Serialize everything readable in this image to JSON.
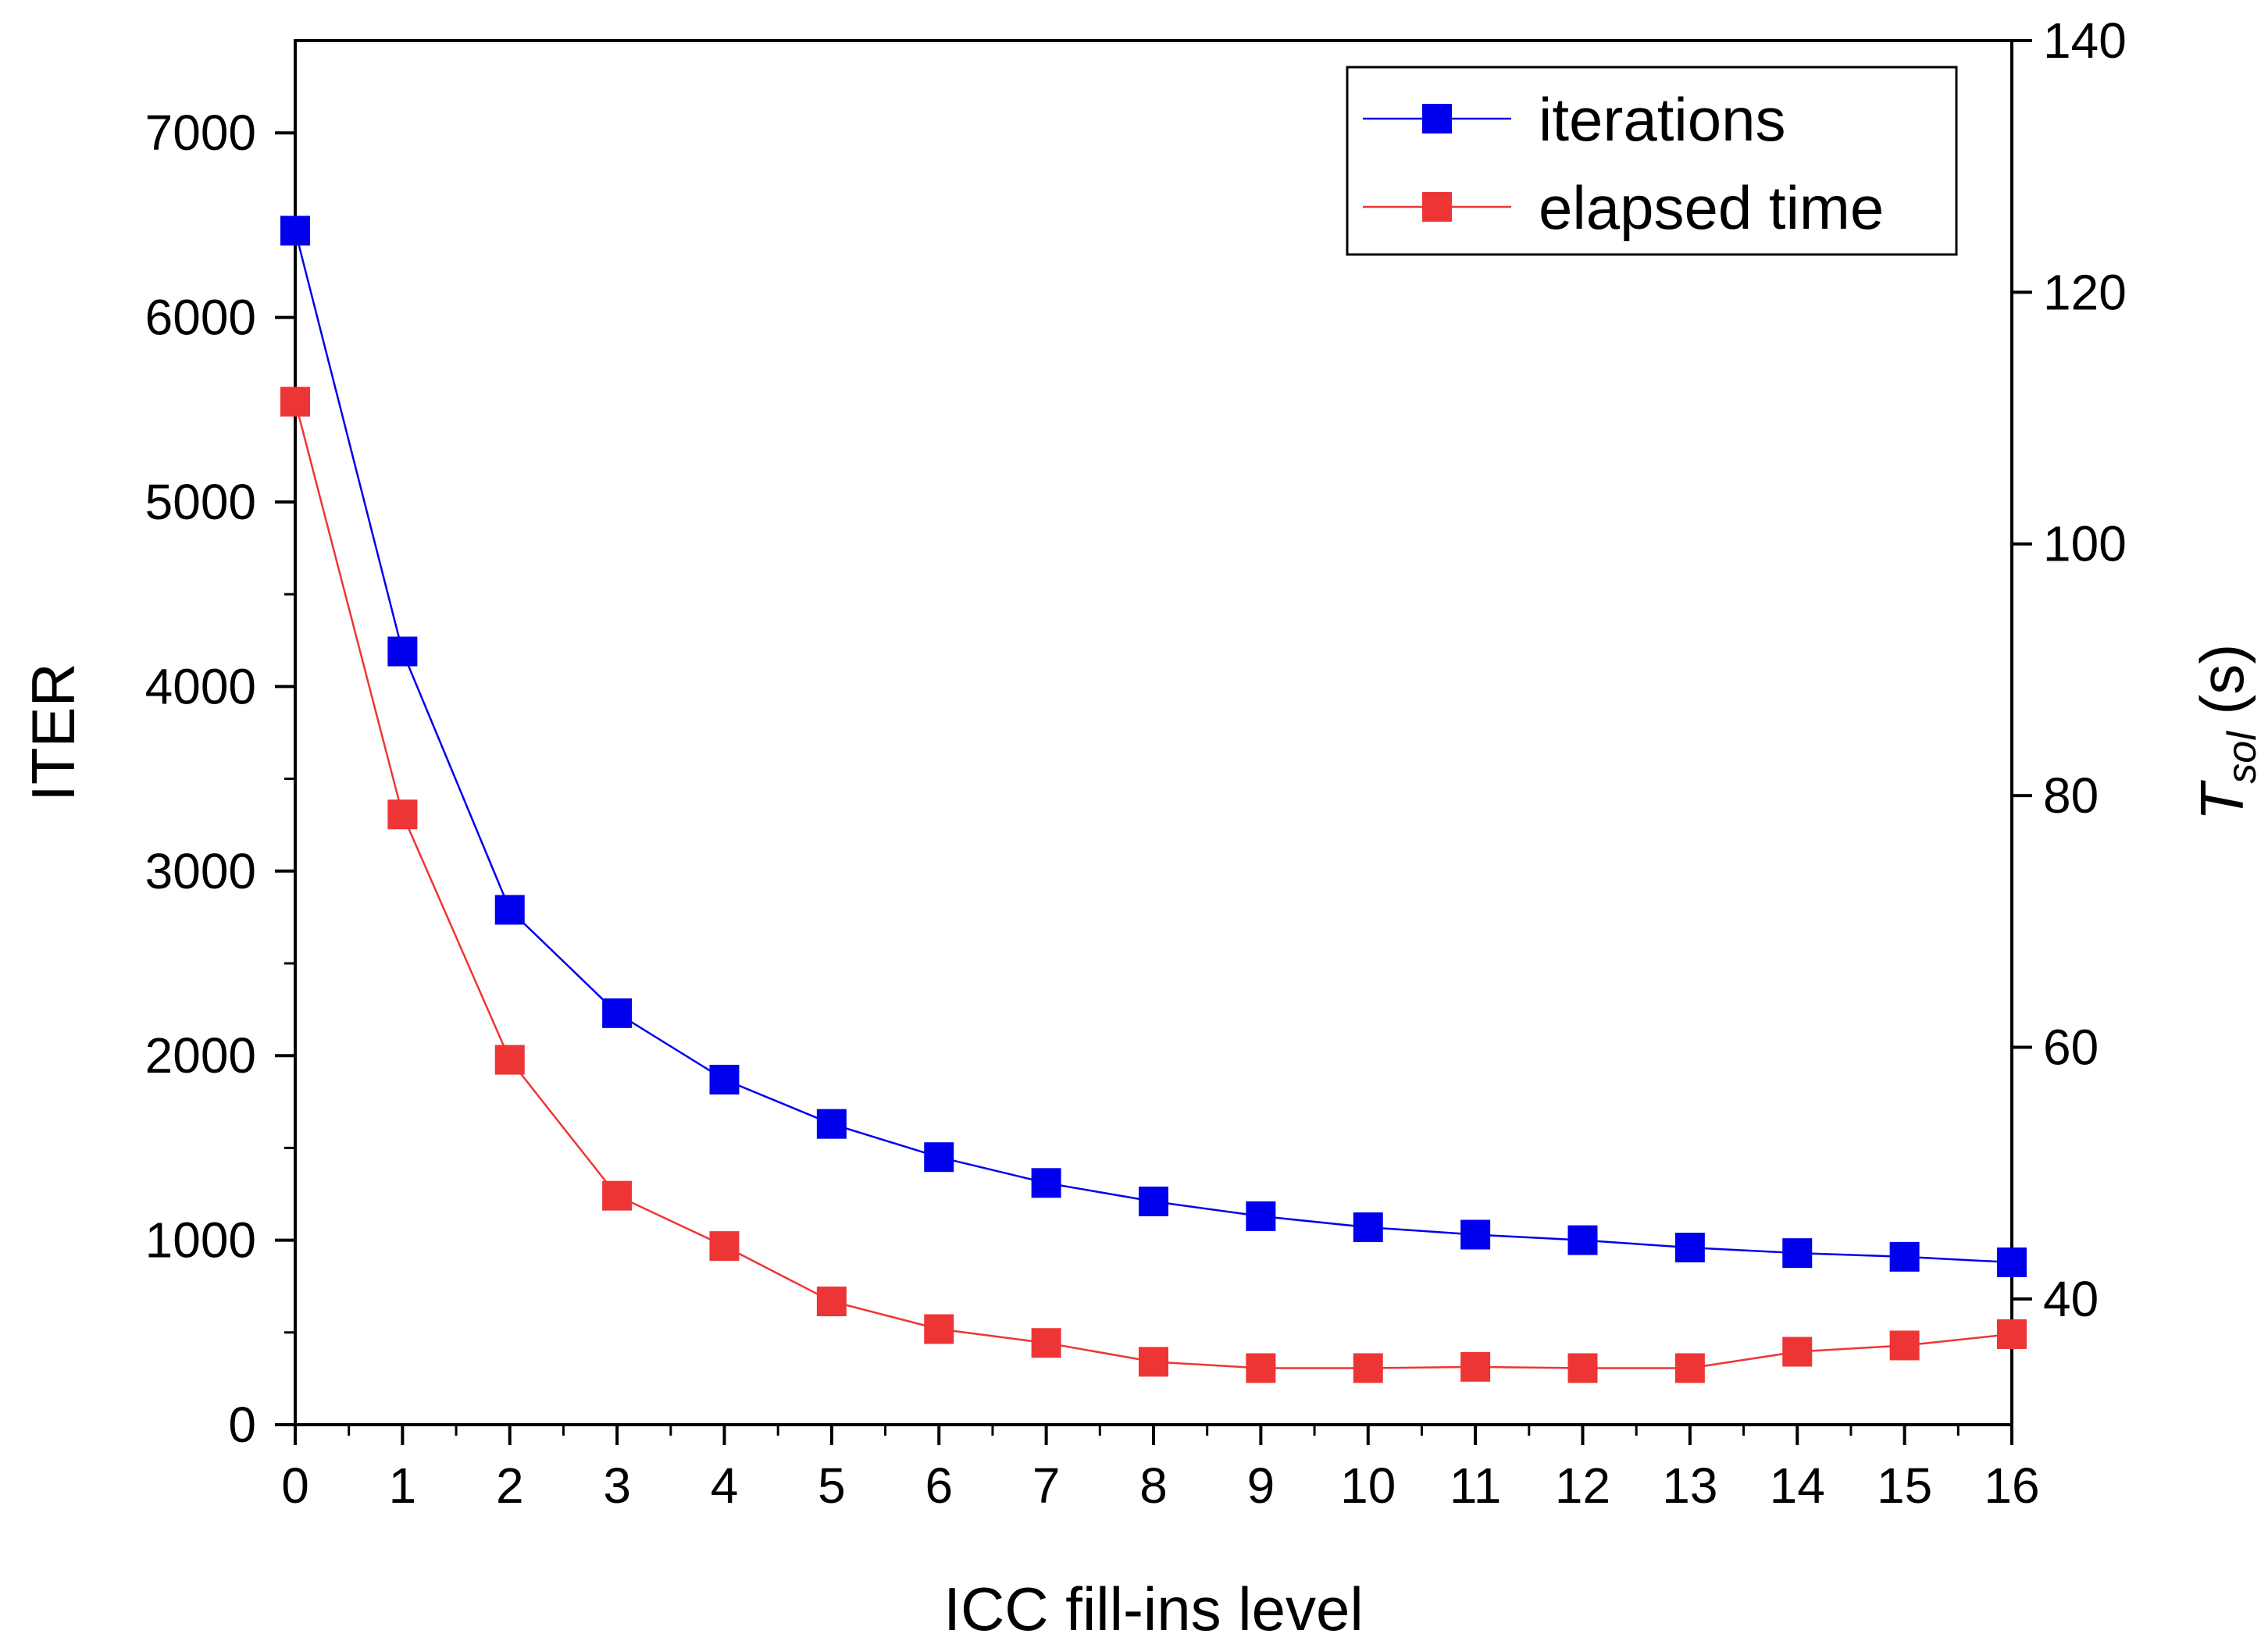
{
  "chart_data": {
    "type": "line",
    "title": "",
    "xlabel": "ICC fill-ins level",
    "ylabel": "ITER",
    "y2label_main": "T",
    "y2label_sub": "sol",
    "y2label_unit": " (s)",
    "xlim": [
      0,
      16
    ],
    "ylim": [
      0,
      7500
    ],
    "y2lim": [
      30,
      140
    ],
    "x_ticks": [
      0,
      1,
      2,
      3,
      4,
      5,
      6,
      7,
      8,
      9,
      10,
      11,
      12,
      13,
      14,
      15,
      16
    ],
    "y_ticks": [
      0,
      1000,
      2000,
      3000,
      4000,
      5000,
      6000,
      7000
    ],
    "y2_ticks": [
      40,
      60,
      80,
      100,
      120,
      140
    ],
    "legend_position": "top-right",
    "series": [
      {
        "name": "iterations",
        "axis": "left",
        "color": "#0000ee",
        "x": [
          0,
          1,
          2,
          3,
          4,
          5,
          6,
          7,
          8,
          9,
          10,
          11,
          12,
          13,
          14,
          15,
          16
        ],
        "values": [
          6470,
          4190,
          2790,
          2230,
          1870,
          1630,
          1450,
          1310,
          1210,
          1130,
          1070,
          1030,
          1000,
          960,
          930,
          910,
          880
        ]
      },
      {
        "name": "elapsed time",
        "axis": "right",
        "color": "#ee3535",
        "x": [
          0,
          1,
          2,
          3,
          4,
          5,
          6,
          7,
          8,
          9,
          10,
          11,
          12,
          13,
          14,
          15,
          16
        ],
        "values": [
          111.3,
          78.5,
          59.0,
          48.2,
          44.2,
          39.8,
          37.6,
          36.5,
          35.0,
          34.5,
          34.5,
          34.6,
          34.5,
          34.5,
          35.8,
          36.3,
          37.2
        ]
      }
    ]
  }
}
